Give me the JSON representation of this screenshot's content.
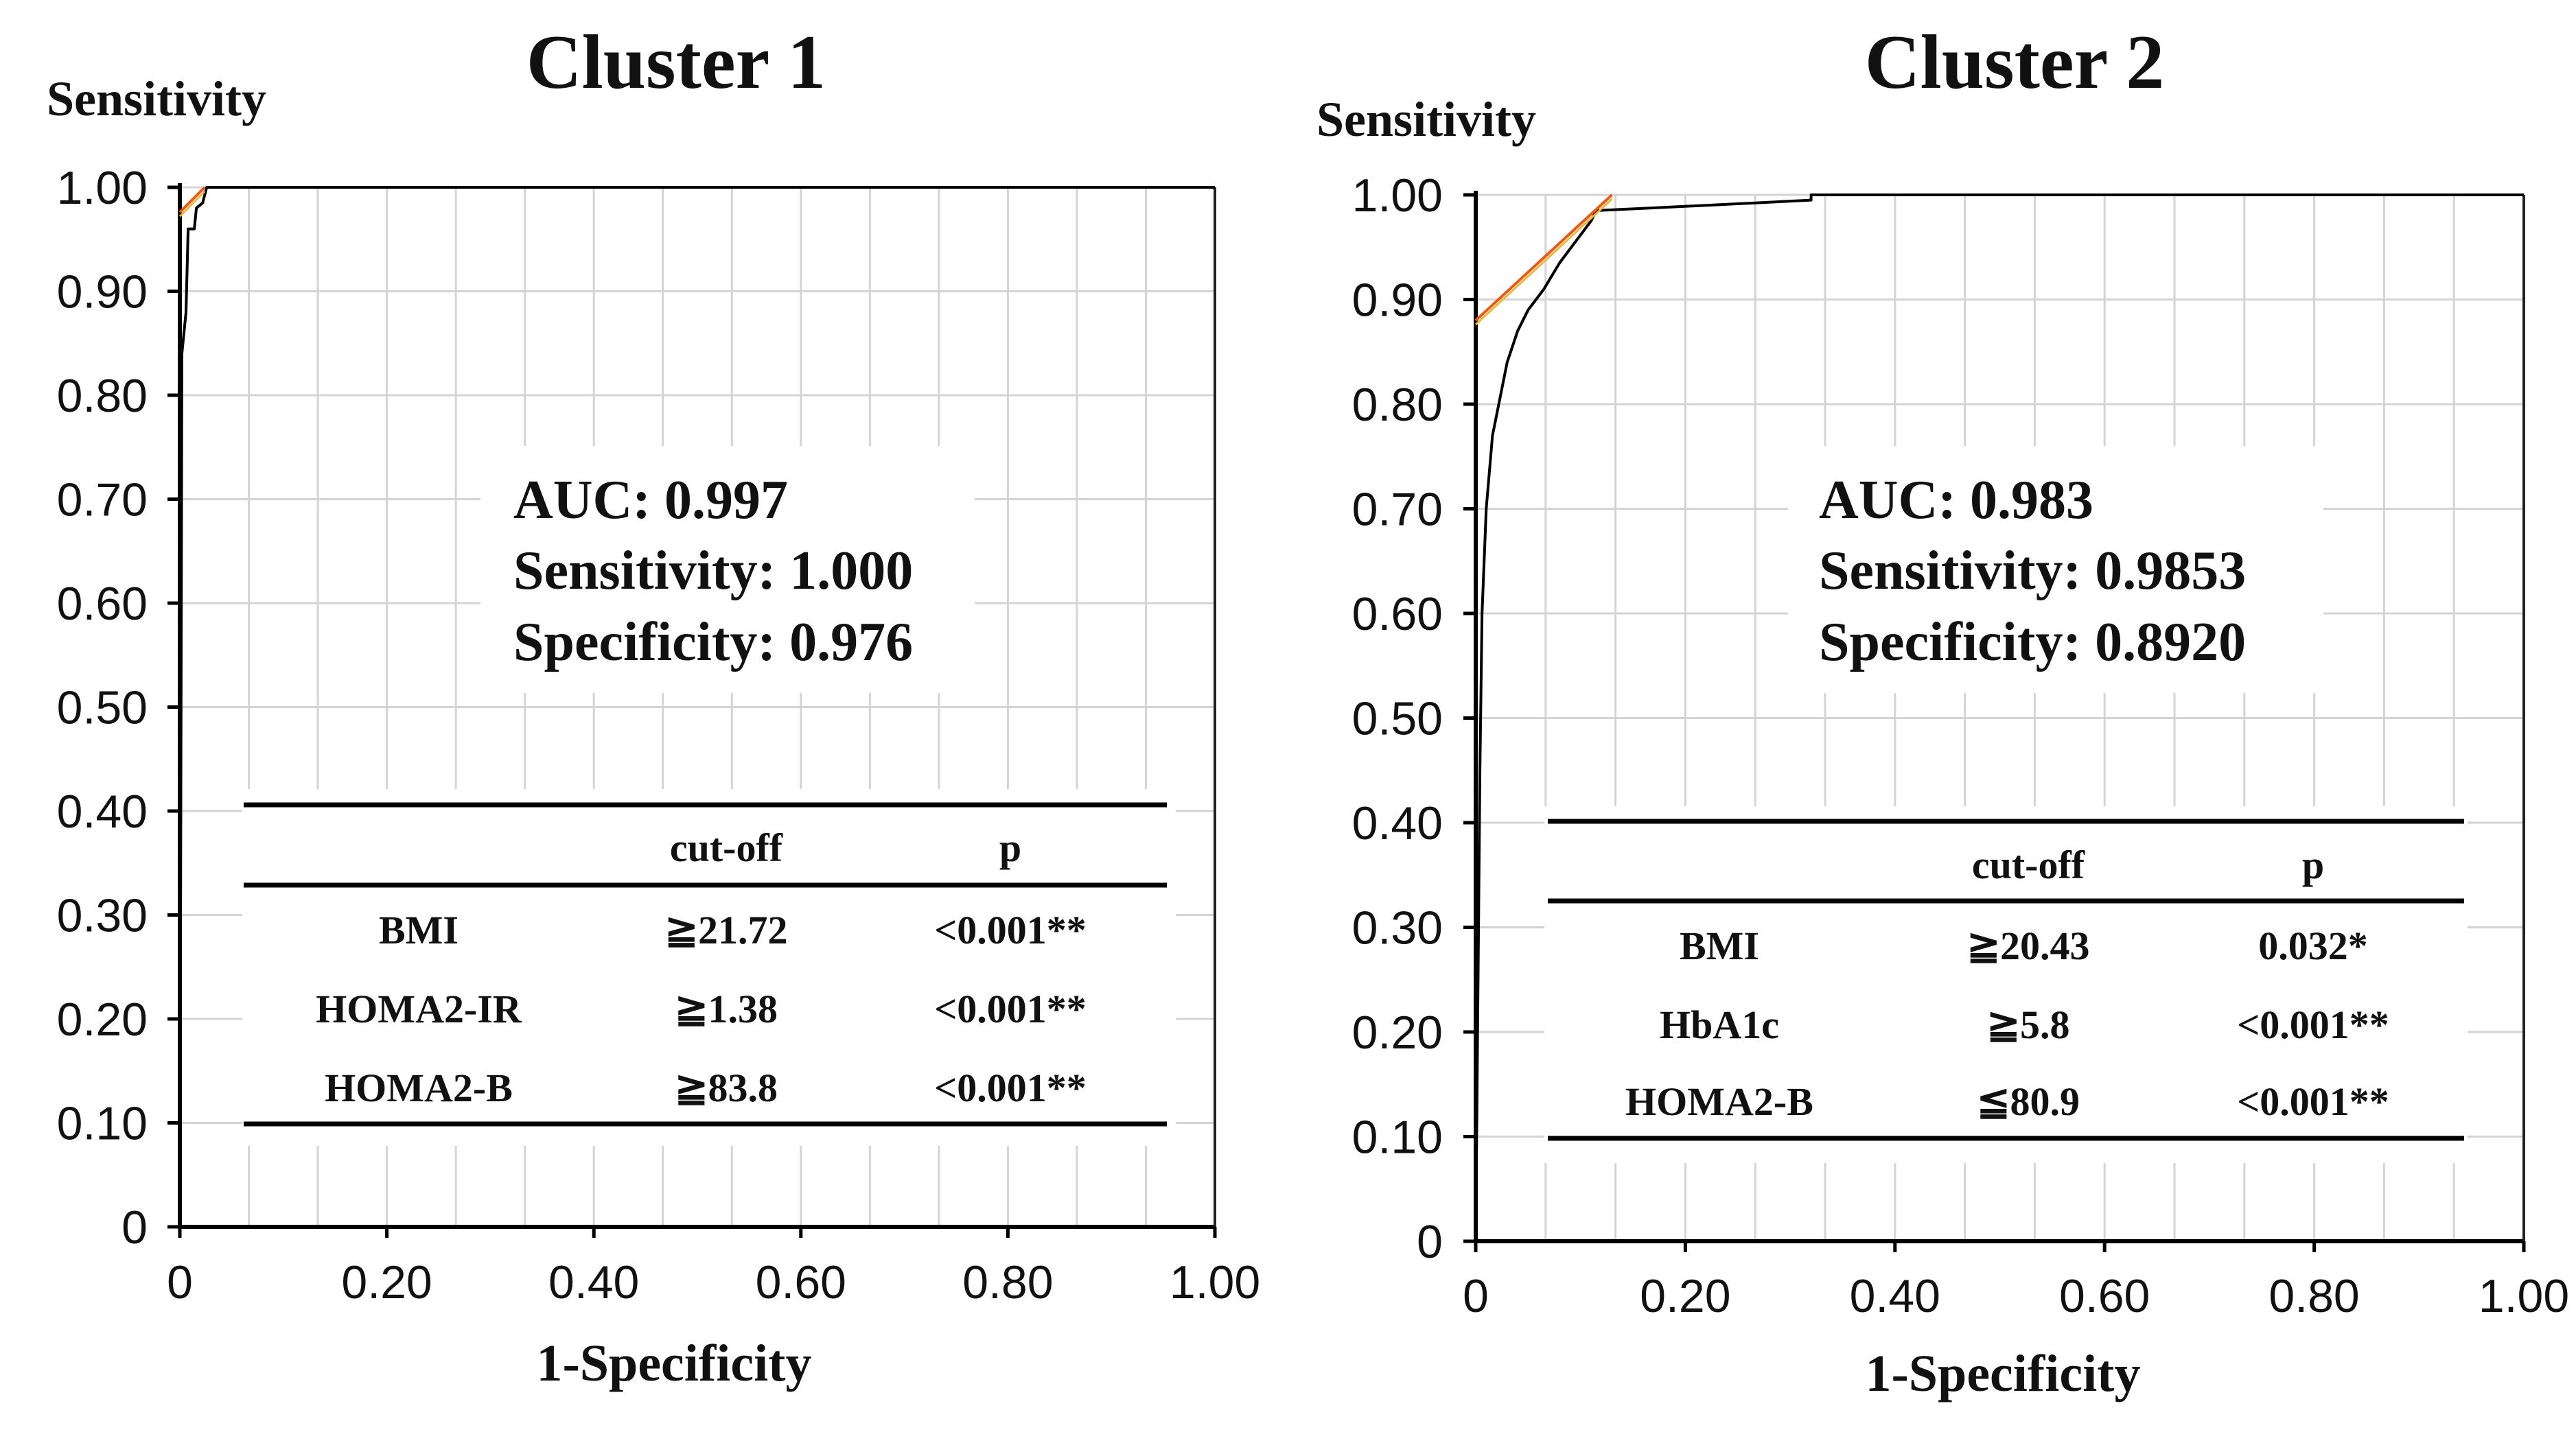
{
  "chart_data": [
    {
      "type": "line",
      "title": "Cluster 1",
      "xlabel": "1-Specificity",
      "ylabel": "Sensitivity",
      "xlim": [
        0,
        1
      ],
      "ylim": [
        0,
        1
      ],
      "grid": true,
      "x_ticks": [
        "0",
        "0.20",
        "0.40",
        "0.60",
        "0.80",
        "1.00"
      ],
      "y_ticks": [
        "0",
        "0.10",
        "0.20",
        "0.30",
        "0.40",
        "0.50",
        "0.60",
        "0.70",
        "0.80",
        "0.90",
        "1.00"
      ],
      "series": [
        {
          "name": "ROC curve",
          "color": "#000000",
          "points": [
            [
              0,
              0
            ],
            [
              0.002,
              0.84
            ],
            [
              0.006,
              0.88
            ],
            [
              0.008,
              0.96
            ],
            [
              0.014,
              0.96
            ],
            [
              0.016,
              0.98
            ],
            [
              0.022,
              0.985
            ],
            [
              0.026,
              1.0
            ],
            [
              1.0,
              1.0
            ]
          ]
        },
        {
          "name": "Tangent line",
          "color": "#e85a1a",
          "points": [
            [
              0,
              0.976
            ],
            [
              0.024,
              1.0
            ]
          ]
        }
      ],
      "stats": {
        "auc": "AUC: 0.997",
        "sensitivity": "Sensitivity: 1.000",
        "specificity": "Specificity: 0.976"
      },
      "table": {
        "headers": [
          "",
          "cut-off",
          "p"
        ],
        "rows": [
          [
            "BMI",
            "≧21.72",
            "<0.001**"
          ],
          [
            "HOMA2-IR",
            "≧1.38",
            "<0.001**"
          ],
          [
            "HOMA2-B",
            "≧83.8",
            "<0.001**"
          ]
        ]
      }
    },
    {
      "type": "line",
      "title": "Cluster 2",
      "xlabel": "1-Specificity",
      "ylabel": "Sensitivity",
      "xlim": [
        0,
        1
      ],
      "ylim": [
        0,
        1
      ],
      "grid": true,
      "x_ticks": [
        "0",
        "0.20",
        "0.40",
        "0.60",
        "0.80",
        "1.00"
      ],
      "y_ticks": [
        "0",
        "0.10",
        "0.20",
        "0.30",
        "0.40",
        "0.50",
        "0.60",
        "0.70",
        "0.80",
        "0.90",
        "1.00"
      ],
      "series": [
        {
          "name": "ROC curve",
          "color": "#000000",
          "points": [
            [
              0,
              0
            ],
            [
              0.004,
              0.45
            ],
            [
              0.006,
              0.6
            ],
            [
              0.01,
              0.7
            ],
            [
              0.016,
              0.77
            ],
            [
              0.022,
              0.8
            ],
            [
              0.03,
              0.84
            ],
            [
              0.04,
              0.87
            ],
            [
              0.05,
              0.89
            ],
            [
              0.065,
              0.91
            ],
            [
              0.08,
              0.935
            ],
            [
              0.095,
              0.955
            ],
            [
              0.11,
              0.975
            ],
            [
              0.115,
              0.985
            ],
            [
              0.22,
              0.99
            ],
            [
              0.32,
              0.995
            ],
            [
              0.32,
              1.0
            ],
            [
              1.0,
              1.0
            ]
          ]
        },
        {
          "name": "Tangent line",
          "color": "#e85a1a",
          "points": [
            [
              0,
              0.88
            ],
            [
              0.13,
              1.0
            ]
          ]
        }
      ],
      "stats": {
        "auc": "AUC: 0.983",
        "sensitivity": "Sensitivity: 0.9853",
        "specificity": "Specificity: 0.8920"
      },
      "table": {
        "headers": [
          "",
          "cut-off",
          "p"
        ],
        "rows": [
          [
            "BMI",
            "≧20.43",
            "0.032*"
          ],
          [
            "HbA1c",
            "≧5.8",
            "<0.001**"
          ],
          [
            "HOMA2-B",
            "≦80.9",
            "<0.001**"
          ]
        ]
      }
    }
  ]
}
